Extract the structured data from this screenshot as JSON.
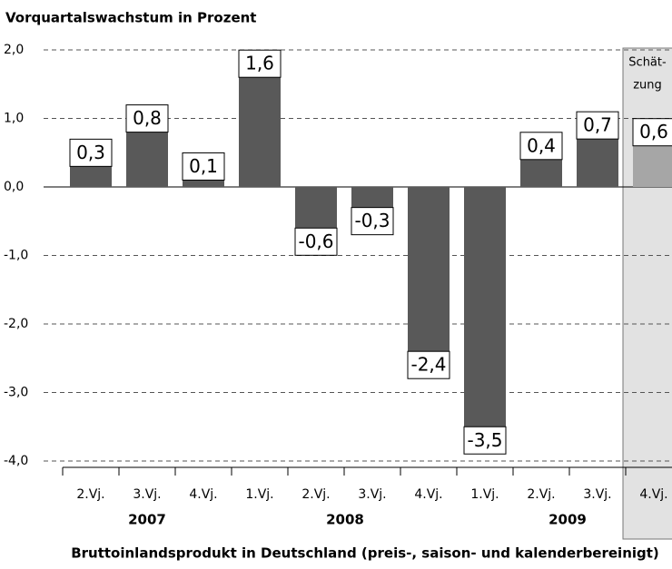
{
  "chart_data": {
    "type": "bar",
    "title": "Vorquartalswachstum in Prozent",
    "x_label": "Bruttoinlandsprodukt in Deutschland (preis-, saison- und kalenderbereinigt)",
    "categories": [
      "2.Vj.",
      "3.Vj.",
      "4.Vj.",
      "1.Vj.",
      "2.Vj.",
      "3.Vj.",
      "4.Vj.",
      "1.Vj.",
      "2.Vj.",
      "3.Vj.",
      "4.Vj."
    ],
    "years": [
      "2007",
      "2008",
      "2009"
    ],
    "values": [
      0.3,
      0.8,
      0.1,
      1.6,
      -0.6,
      -0.3,
      -2.4,
      -3.5,
      0.4,
      0.7,
      0.6
    ],
    "value_labels": [
      "0,3",
      "0,8",
      "0,1",
      "1,6",
      "-0,6",
      "-0,3",
      "-2,4",
      "-3,5",
      "0,4",
      "0,7",
      "0,6"
    ],
    "colors": [
      "#595959",
      "#595959",
      "#595959",
      "#595959",
      "#595959",
      "#595959",
      "#595959",
      "#595959",
      "#595959",
      "#595959",
      "#a6a6a6"
    ],
    "annotation": [
      "Schät-",
      "zung"
    ],
    "ylim": [
      -4,
      2
    ],
    "yticks": [
      {
        "value": -4,
        "label": "-4,0"
      },
      {
        "value": -3,
        "label": "-3,0"
      },
      {
        "value": -2,
        "label": "-2,0"
      },
      {
        "value": -1,
        "label": "-1,0"
      },
      {
        "value": 0,
        "label": "0,0"
      },
      {
        "value": 1,
        "label": "1,0"
      },
      {
        "value": 2,
        "label": "2,0"
      }
    ],
    "grid": true
  }
}
